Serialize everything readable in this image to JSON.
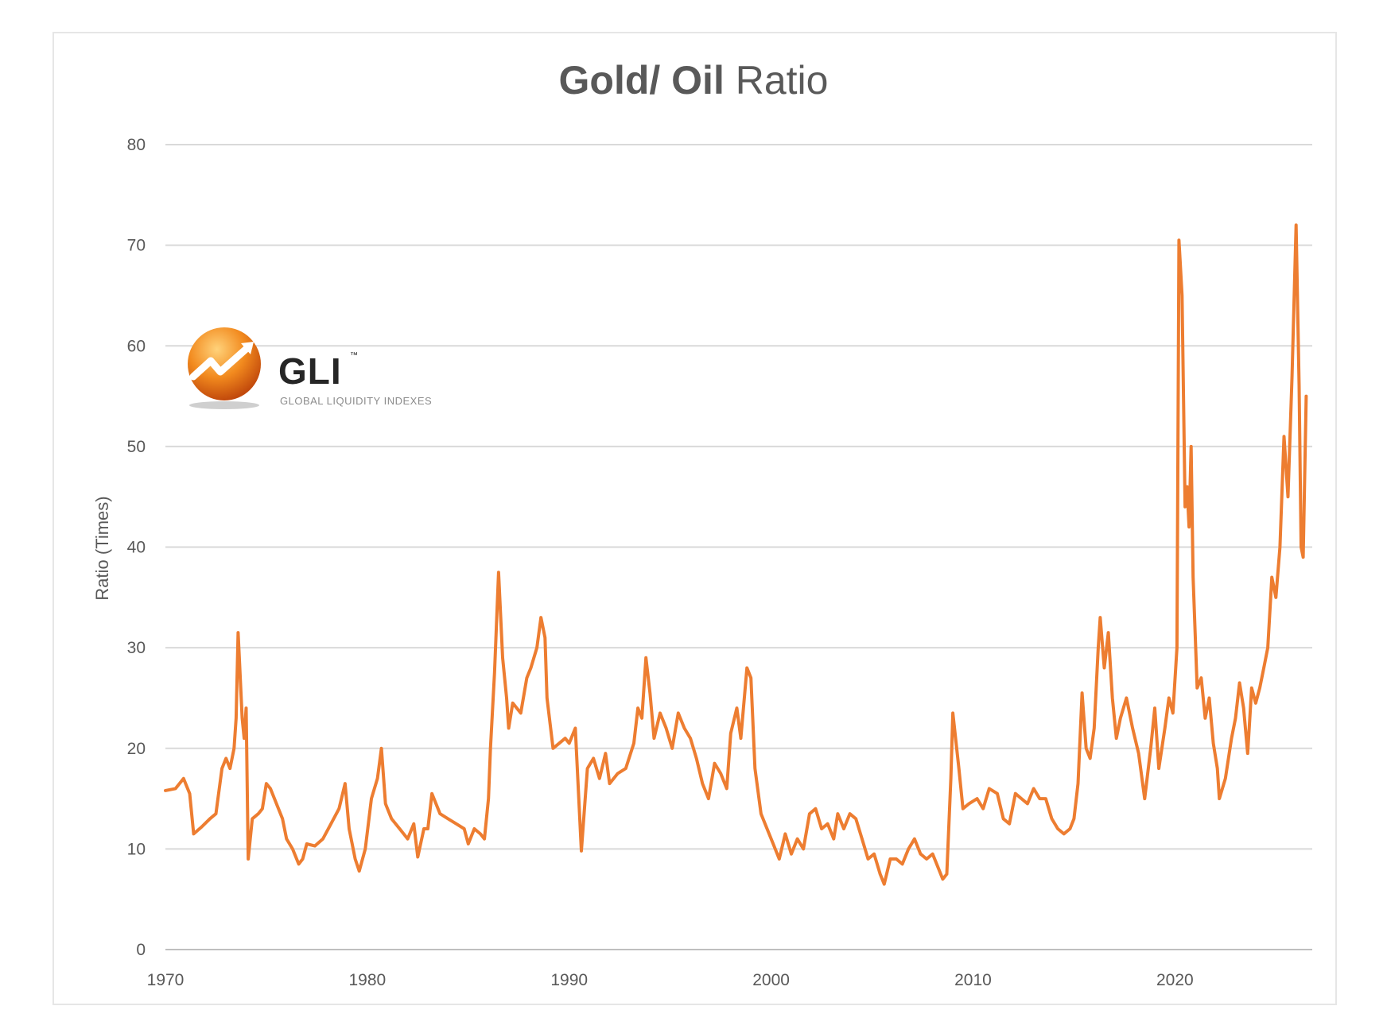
{
  "chart_data": {
    "type": "line",
    "title_bold": "Gold/ Oil",
    "title_rest": " Ratio",
    "xlabel": "",
    "ylabel": "Ratio (Times)",
    "xlim": [
      1970,
      2026.8
    ],
    "ylim": [
      0,
      80
    ],
    "x_ticks": [
      "1970",
      "1980",
      "1990",
      "2000",
      "2010",
      "2020"
    ],
    "y_ticks": [
      "0",
      "10",
      "20",
      "30",
      "40",
      "50",
      "60",
      "70",
      "80"
    ],
    "grid": "horizontal",
    "legend": "none",
    "line_color": "#ed7d31",
    "series": [
      {
        "points": [
          [
            1970.0,
            15.8
          ],
          [
            1970.5,
            16.0
          ],
          [
            1970.9,
            17.0
          ],
          [
            1971.2,
            15.5
          ],
          [
            1971.4,
            11.5
          ],
          [
            1971.8,
            12.2
          ],
          [
            1972.2,
            13.0
          ],
          [
            1972.5,
            13.5
          ],
          [
            1972.8,
            18.0
          ],
          [
            1973.0,
            19.0
          ],
          [
            1973.2,
            18.0
          ],
          [
            1973.4,
            20.0
          ],
          [
            1973.5,
            23.0
          ],
          [
            1973.6,
            31.5
          ],
          [
            1973.8,
            23.0
          ],
          [
            1973.9,
            21.0
          ],
          [
            1974.0,
            24.0
          ],
          [
            1974.1,
            9.0
          ],
          [
            1974.3,
            13.0
          ],
          [
            1974.6,
            13.5
          ],
          [
            1974.8,
            14.0
          ],
          [
            1975.0,
            16.5
          ],
          [
            1975.2,
            16.0
          ],
          [
            1975.5,
            14.5
          ],
          [
            1975.8,
            13.0
          ],
          [
            1976.0,
            11.0
          ],
          [
            1976.3,
            10.0
          ],
          [
            1976.6,
            8.5
          ],
          [
            1976.8,
            9.0
          ],
          [
            1977.0,
            10.5
          ],
          [
            1977.4,
            10.3
          ],
          [
            1977.8,
            11.0
          ],
          [
            1978.2,
            12.5
          ],
          [
            1978.6,
            14.0
          ],
          [
            1978.9,
            16.5
          ],
          [
            1979.1,
            12.0
          ],
          [
            1979.4,
            9.0
          ],
          [
            1979.6,
            7.8
          ],
          [
            1979.9,
            10.0
          ],
          [
            1980.2,
            15.0
          ],
          [
            1980.5,
            17.0
          ],
          [
            1980.7,
            20.0
          ],
          [
            1980.9,
            14.5
          ],
          [
            1981.2,
            13.0
          ],
          [
            1981.6,
            12.0
          ],
          [
            1982.0,
            11.0
          ],
          [
            1982.3,
            12.5
          ],
          [
            1982.5,
            9.2
          ],
          [
            1982.8,
            12.0
          ],
          [
            1983.0,
            12.0
          ],
          [
            1983.2,
            15.5
          ],
          [
            1983.6,
            13.5
          ],
          [
            1984.0,
            13.0
          ],
          [
            1984.4,
            12.5
          ],
          [
            1984.8,
            12.0
          ],
          [
            1985.0,
            10.5
          ],
          [
            1985.3,
            12.0
          ],
          [
            1985.6,
            11.5
          ],
          [
            1985.8,
            11.0
          ],
          [
            1986.0,
            15.0
          ],
          [
            1986.1,
            20.0
          ],
          [
            1986.3,
            27.5
          ],
          [
            1986.5,
            37.5
          ],
          [
            1986.7,
            29.0
          ],
          [
            1986.9,
            25.0
          ],
          [
            1987.0,
            22.0
          ],
          [
            1987.2,
            24.5
          ],
          [
            1987.6,
            23.5
          ],
          [
            1987.9,
            27.0
          ],
          [
            1988.1,
            28.0
          ],
          [
            1988.4,
            30.0
          ],
          [
            1988.6,
            33.0
          ],
          [
            1988.8,
            31.0
          ],
          [
            1988.9,
            25.0
          ],
          [
            1989.2,
            20.0
          ],
          [
            1989.5,
            20.5
          ],
          [
            1989.8,
            21.0
          ],
          [
            1990.0,
            20.5
          ],
          [
            1990.3,
            22.0
          ],
          [
            1990.6,
            9.8
          ],
          [
            1990.9,
            18.0
          ],
          [
            1991.2,
            19.0
          ],
          [
            1991.5,
            17.0
          ],
          [
            1991.8,
            19.5
          ],
          [
            1992.0,
            16.5
          ],
          [
            1992.4,
            17.5
          ],
          [
            1992.8,
            18.0
          ],
          [
            1993.2,
            20.5
          ],
          [
            1993.4,
            24.0
          ],
          [
            1993.6,
            23.0
          ],
          [
            1993.8,
            29.0
          ],
          [
            1994.0,
            25.5
          ],
          [
            1994.2,
            21.0
          ],
          [
            1994.5,
            23.5
          ],
          [
            1994.8,
            22.0
          ],
          [
            1995.1,
            20.0
          ],
          [
            1995.4,
            23.5
          ],
          [
            1995.7,
            22.0
          ],
          [
            1996.0,
            21.0
          ],
          [
            1996.3,
            19.0
          ],
          [
            1996.6,
            16.5
          ],
          [
            1996.9,
            15.0
          ],
          [
            1997.2,
            18.5
          ],
          [
            1997.5,
            17.5
          ],
          [
            1997.8,
            16.0
          ],
          [
            1998.0,
            21.5
          ],
          [
            1998.3,
            24.0
          ],
          [
            1998.5,
            21.0
          ],
          [
            1998.8,
            28.0
          ],
          [
            1999.0,
            27.0
          ],
          [
            1999.2,
            18.0
          ],
          [
            1999.5,
            13.5
          ],
          [
            1999.8,
            12.0
          ],
          [
            2000.1,
            10.5
          ],
          [
            2000.4,
            9.0
          ],
          [
            2000.7,
            11.5
          ],
          [
            2001.0,
            9.5
          ],
          [
            2001.3,
            11.0
          ],
          [
            2001.6,
            10.0
          ],
          [
            2001.9,
            13.5
          ],
          [
            2002.2,
            14.0
          ],
          [
            2002.5,
            12.0
          ],
          [
            2002.8,
            12.5
          ],
          [
            2003.1,
            11.0
          ],
          [
            2003.3,
            13.5
          ],
          [
            2003.6,
            12.0
          ],
          [
            2003.9,
            13.5
          ],
          [
            2004.2,
            13.0
          ],
          [
            2004.5,
            11.0
          ],
          [
            2004.8,
            9.0
          ],
          [
            2005.1,
            9.5
          ],
          [
            2005.4,
            7.5
          ],
          [
            2005.6,
            6.5
          ],
          [
            2005.9,
            9.0
          ],
          [
            2006.2,
            9.0
          ],
          [
            2006.5,
            8.5
          ],
          [
            2006.8,
            10.0
          ],
          [
            2007.1,
            11.0
          ],
          [
            2007.4,
            9.5
          ],
          [
            2007.7,
            9.0
          ],
          [
            2008.0,
            9.5
          ],
          [
            2008.2,
            8.5
          ],
          [
            2008.5,
            7.0
          ],
          [
            2008.7,
            7.5
          ],
          [
            2008.9,
            17.0
          ],
          [
            2009.0,
            23.5
          ],
          [
            2009.3,
            18.0
          ],
          [
            2009.5,
            14.0
          ],
          [
            2009.8,
            14.5
          ],
          [
            2010.2,
            15.0
          ],
          [
            2010.5,
            14.0
          ],
          [
            2010.8,
            16.0
          ],
          [
            2011.2,
            15.5
          ],
          [
            2011.5,
            13.0
          ],
          [
            2011.8,
            12.5
          ],
          [
            2012.1,
            15.5
          ],
          [
            2012.4,
            15.0
          ],
          [
            2012.7,
            14.5
          ],
          [
            2013.0,
            16.0
          ],
          [
            2013.3,
            15.0
          ],
          [
            2013.6,
            15.0
          ],
          [
            2013.9,
            13.0
          ],
          [
            2014.2,
            12.0
          ],
          [
            2014.5,
            11.5
          ],
          [
            2014.8,
            12.0
          ],
          [
            2015.0,
            13.0
          ],
          [
            2015.2,
            16.5
          ],
          [
            2015.4,
            25.5
          ],
          [
            2015.6,
            20.0
          ],
          [
            2015.8,
            19.0
          ],
          [
            2016.0,
            22.0
          ],
          [
            2016.2,
            30.0
          ],
          [
            2016.3,
            33.0
          ],
          [
            2016.5,
            28.0
          ],
          [
            2016.7,
            31.5
          ],
          [
            2016.9,
            25.0
          ],
          [
            2017.1,
            21.0
          ],
          [
            2017.3,
            23.0
          ],
          [
            2017.6,
            25.0
          ],
          [
            2017.9,
            22.0
          ],
          [
            2018.2,
            19.5
          ],
          [
            2018.5,
            15.0
          ],
          [
            2018.8,
            20.0
          ],
          [
            2019.0,
            24.0
          ],
          [
            2019.2,
            18.0
          ],
          [
            2019.5,
            22.0
          ],
          [
            2019.7,
            25.0
          ],
          [
            2019.9,
            23.5
          ],
          [
            2020.1,
            30.0
          ],
          [
            2020.2,
            70.5
          ],
          [
            2020.35,
            65.0
          ],
          [
            2020.5,
            44.0
          ],
          [
            2020.6,
            46.0
          ],
          [
            2020.7,
            42.0
          ],
          [
            2020.8,
            50.0
          ],
          [
            2020.9,
            37.0
          ],
          [
            2021.1,
            26.0
          ],
          [
            2021.3,
            27.0
          ],
          [
            2021.5,
            23.0
          ],
          [
            2021.7,
            25.0
          ],
          [
            2021.9,
            20.5
          ],
          [
            2022.1,
            18.0
          ],
          [
            2022.2,
            15.0
          ],
          [
            2022.5,
            17.0
          ],
          [
            2022.8,
            21.0
          ],
          [
            2023.0,
            23.0
          ],
          [
            2023.2,
            26.5
          ],
          [
            2023.4,
            24.0
          ],
          [
            2023.6,
            19.5
          ],
          [
            2023.8,
            26.0
          ],
          [
            2024.0,
            24.5
          ],
          [
            2024.2,
            26.0
          ],
          [
            2024.4,
            28.0
          ],
          [
            2024.6,
            30.0
          ],
          [
            2024.8,
            37.0
          ],
          [
            2025.0,
            35.0
          ],
          [
            2025.2,
            40.0
          ],
          [
            2025.4,
            51.0
          ],
          [
            2025.6,
            45.0
          ],
          [
            2025.8,
            57.0
          ],
          [
            2026.0,
            72.0
          ],
          [
            2026.15,
            56.0
          ],
          [
            2026.25,
            40.0
          ],
          [
            2026.35,
            39.0
          ],
          [
            2026.5,
            55.0
          ]
        ]
      }
    ]
  },
  "logo": {
    "wordmark": "GLI",
    "tagline": "GLOBAL LIQUIDITY INDEXES"
  }
}
